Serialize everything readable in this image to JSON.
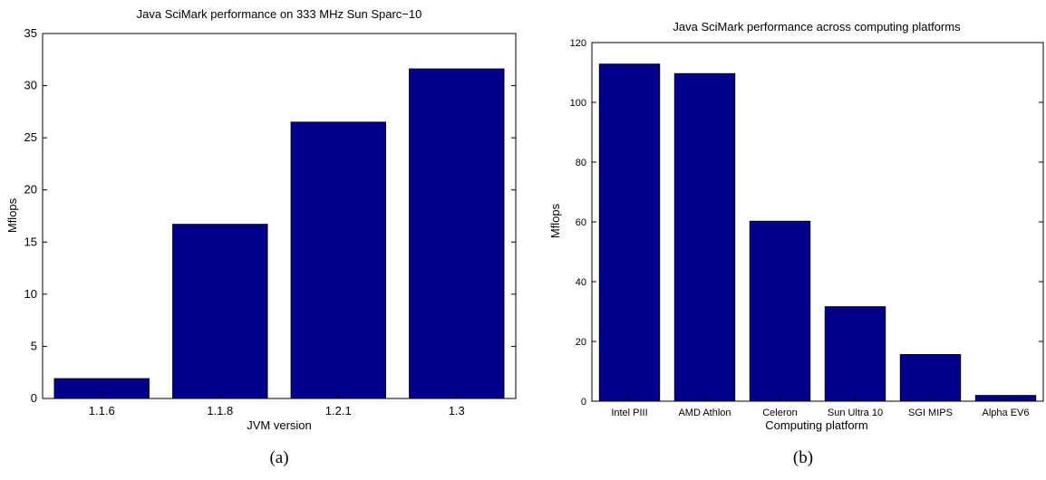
{
  "chart_data": [
    {
      "type": "bar",
      "title": "Java SciMark performance on 333 MHz Sun Sparc−10",
      "xlabel": "JVM version",
      "ylabel": "Mflops",
      "caption": "(a)",
      "categories": [
        "1.1.6",
        "1.1.8",
        "1.2.1",
        "1.3"
      ],
      "values": [
        1.9,
        16.7,
        26.5,
        31.6
      ],
      "ylim": [
        0,
        35
      ],
      "yticks": [
        0,
        5,
        10,
        15,
        20,
        25,
        30,
        35
      ],
      "bar_color": "#00008b",
      "grid": false
    },
    {
      "type": "bar",
      "title": "Java SciMark performance across computing platforms",
      "xlabel": "Computing platform",
      "ylabel": "Mflops",
      "caption": "(b)",
      "categories": [
        "Intel PIII",
        "AMD Athlon",
        "Celeron",
        "Sun Ultra 10",
        "SGI MIPS",
        "Alpha EV6"
      ],
      "values": [
        112.8,
        109.6,
        60.2,
        31.6,
        15.6,
        1.9
      ],
      "ylim": [
        0,
        120
      ],
      "yticks": [
        0,
        20,
        40,
        60,
        80,
        100,
        120
      ],
      "bar_color": "#00008b",
      "grid": false
    }
  ]
}
